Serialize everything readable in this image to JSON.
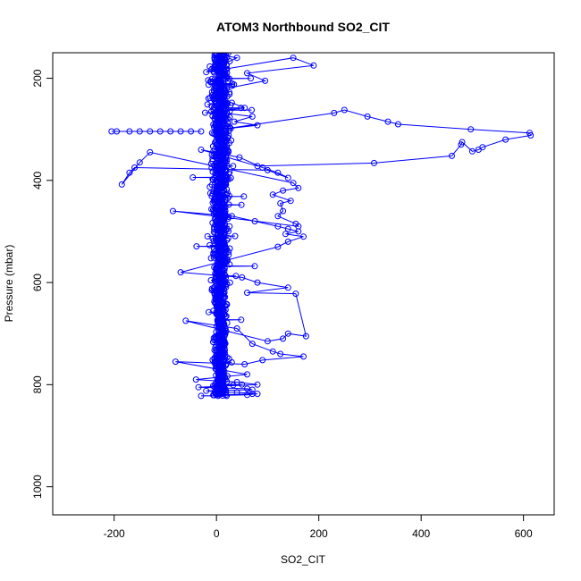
{
  "chart_data": {
    "type": "scatter",
    "title": "ATOM3 Northbound SO2_CIT",
    "xlabel": "SO2_CIT",
    "ylabel": "Pressure (mbar)",
    "xlim": [
      -320,
      660
    ],
    "ylim": [
      1055,
      150
    ],
    "y_reversed": true,
    "x_ticks": [
      -200,
      0,
      200,
      400,
      600
    ],
    "y_ticks": [
      200,
      400,
      600,
      800,
      1000
    ],
    "grid": false,
    "legend": "none",
    "plot_type": "b",
    "marker": "open-circle",
    "color": "#0000ff",
    "series": [
      {
        "x": [
          12,
          40,
          -20,
          150,
          190,
          60,
          95,
          20,
          -5,
          30,
          55,
          -10,
          70,
          35,
          80,
          10,
          230,
          250,
          295,
          335,
          355,
          497,
          612,
          614,
          565,
          520,
          512,
          500,
          480,
          478,
          460,
          308,
          80,
          -30,
          45,
          90,
          120,
          140,
          100,
          -160,
          -170,
          -185,
          -150,
          -130,
          150,
          160,
          130,
          110,
          145,
          125,
          130,
          120,
          155,
          160,
          -85,
          30,
          75,
          120,
          140,
          160,
          135,
          170,
          140,
          120,
          -70,
          50,
          80,
          140,
          60,
          155,
          175,
          140,
          130,
          100,
          -60,
          40,
          70,
          110,
          125,
          170,
          90,
          55,
          -80,
          60,
          -40,
          40,
          80,
          -35,
          60,
          70,
          -20,
          5,
          40,
          80,
          60,
          -30,
          20,
          0,
          70
        ],
        "y": [
          155,
          160,
          188,
          160,
          175,
          190,
          205,
          220,
          235,
          248,
          258,
          265,
          275,
          285,
          292,
          300,
          268,
          262,
          275,
          285,
          290,
          300,
          307,
          312,
          320,
          335,
          340,
          343,
          325,
          330,
          352,
          366,
          372,
          340,
          355,
          375,
          385,
          395,
          380,
          375,
          385,
          408,
          365,
          345,
          405,
          415,
          420,
          428,
          440,
          445,
          460,
          470,
          485,
          490,
          460,
          470,
          480,
          490,
          495,
          500,
          505,
          510,
          520,
          530,
          580,
          590,
          600,
          610,
          620,
          622,
          705,
          700,
          710,
          715,
          675,
          690,
          720,
          735,
          740,
          745,
          752,
          760,
          755,
          780,
          790,
          795,
          800,
          805,
          808,
          810,
          812,
          815,
          815,
          818,
          820,
          822,
          822,
          820,
          818
        ]
      },
      {
        "x": [
          -205,
          -195,
          -170,
          -150,
          -130,
          -110,
          -90,
          -70,
          -50,
          -30
        ],
        "y": [
          304,
          304,
          304,
          304,
          304,
          304,
          304,
          304,
          304,
          304
        ]
      }
    ]
  }
}
